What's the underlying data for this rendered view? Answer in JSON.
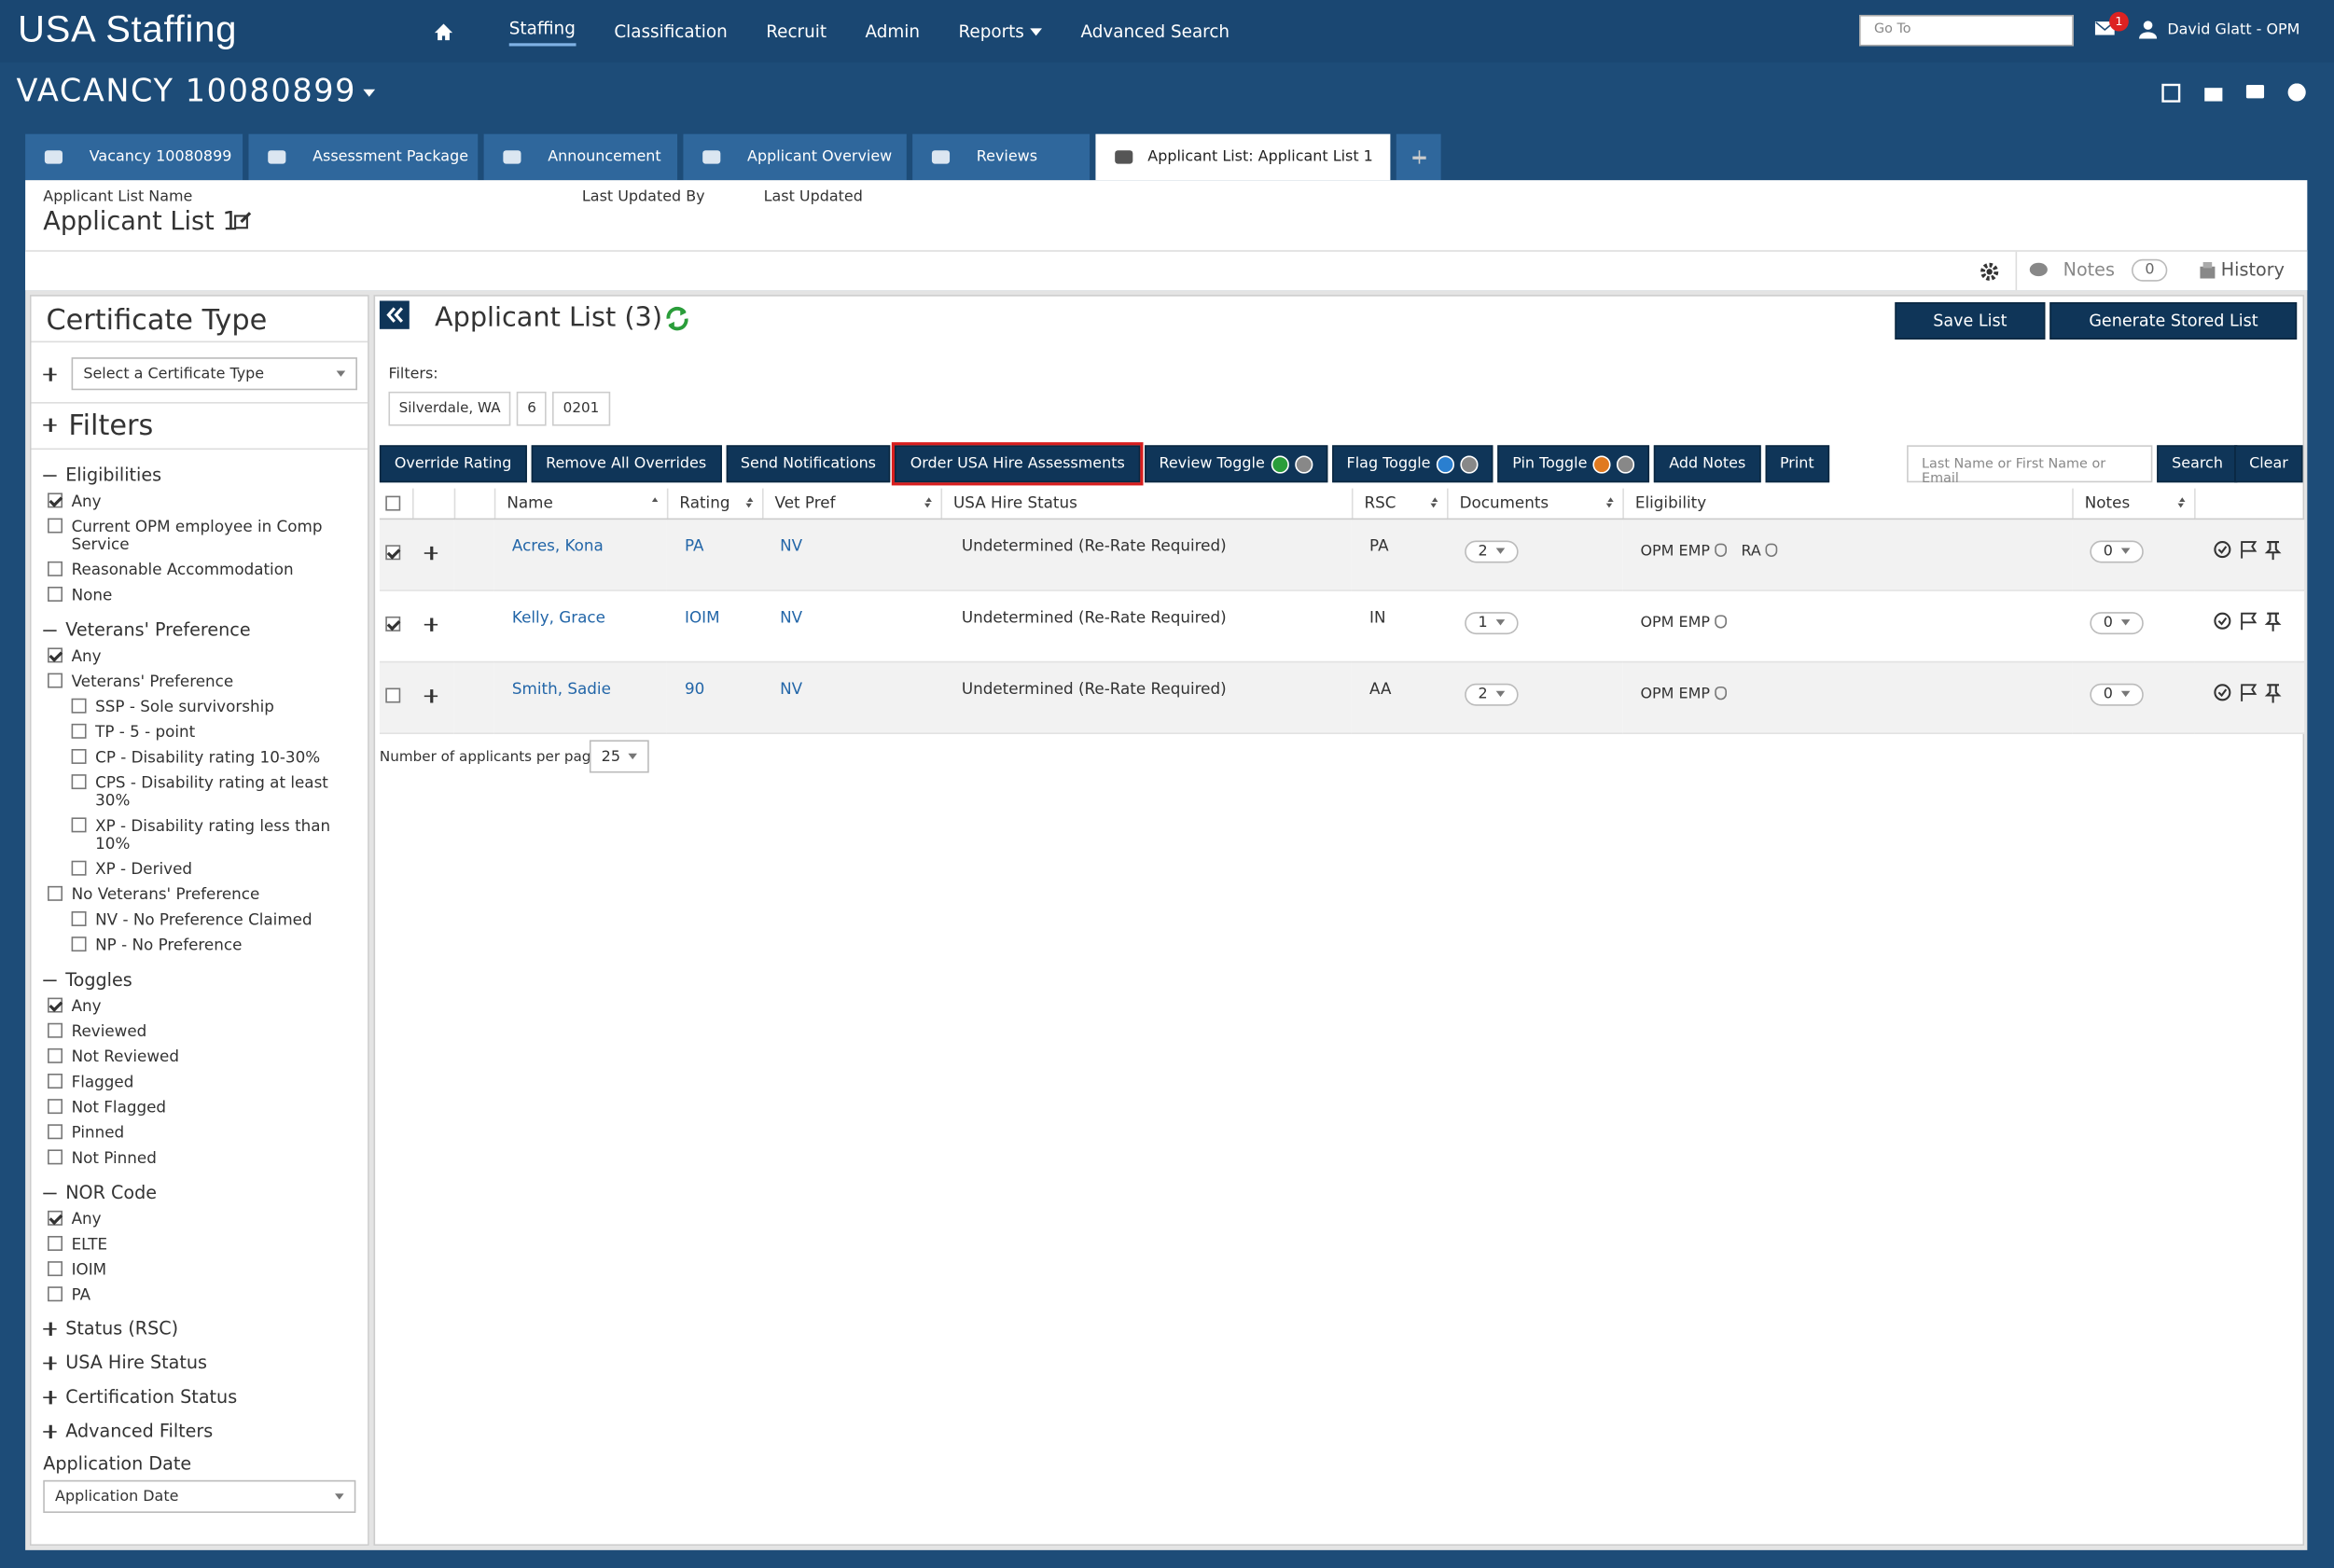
{
  "header": {
    "logo": "USA Staffing",
    "nav": [
      "Staffing",
      "Classification",
      "Recruit",
      "Admin",
      "Reports",
      "Advanced Search"
    ],
    "active_nav": "Staffing",
    "goto": "Go To",
    "badge": "1",
    "user": "David Glatt - OPM"
  },
  "vacancy": "VACANCY 10080899",
  "tabs": [
    {
      "label": "Vacancy 10080899"
    },
    {
      "label": "Assessment Package"
    },
    {
      "label": "Announcement"
    },
    {
      "label": "Applicant Overview"
    },
    {
      "label": "Reviews"
    },
    {
      "label": "Applicant List: Applicant List 1",
      "active": true
    }
  ],
  "list_info": {
    "name_label": "Applicant List Name",
    "name": "Applicant List 1",
    "updated_by_label": "Last Updated By",
    "updated_label": "Last Updated"
  },
  "toolbar": {
    "notes": "Notes",
    "notes_count": "0",
    "history": "History"
  },
  "sidebar": {
    "cert_title": "Certificate Type",
    "cert_select": "Select a Certificate Type",
    "filters_title": "Filters",
    "groups": [
      {
        "title": "Eligibilities",
        "items": [
          {
            "label": "Any",
            "checked": true
          },
          {
            "label": "Current OPM employee in Comp Service"
          },
          {
            "label": "Reasonable Accommodation"
          },
          {
            "label": "None"
          }
        ]
      },
      {
        "title": "Veterans' Preference",
        "items": [
          {
            "label": "Any",
            "checked": true
          },
          {
            "label": "Veterans' Preference",
            "children": [
              {
                "label": "SSP - Sole survivorship"
              },
              {
                "label": "TP - 5 - point"
              },
              {
                "label": "CP - Disability rating 10-30%"
              },
              {
                "label": "CPS - Disability rating at least 30%"
              },
              {
                "label": "XP - Disability rating less than 10%"
              },
              {
                "label": "XP - Derived"
              }
            ]
          },
          {
            "label": "No Veterans' Preference",
            "children": [
              {
                "label": "NV - No Preference Claimed"
              },
              {
                "label": "NP - No Preference"
              }
            ]
          }
        ]
      },
      {
        "title": "Toggles",
        "items": [
          {
            "label": "Any",
            "checked": true
          },
          {
            "label": "Reviewed"
          },
          {
            "label": "Not Reviewed"
          },
          {
            "label": "Flagged"
          },
          {
            "label": "Not Flagged"
          },
          {
            "label": "Pinned"
          },
          {
            "label": "Not Pinned"
          }
        ]
      },
      {
        "title": "NOR Code",
        "items": [
          {
            "label": "Any",
            "checked": true
          },
          {
            "label": "ELTE"
          },
          {
            "label": "IOIM"
          },
          {
            "label": "PA"
          }
        ]
      }
    ],
    "collapsed": [
      "Status (RSC)",
      "USA Hire Status",
      "Certification Status",
      "Advanced Filters"
    ],
    "date_label": "Application Date",
    "date_select": "Application Date"
  },
  "main": {
    "title": "Applicant List (3)",
    "top_buttons": [
      "Save List",
      "Generate Stored List"
    ],
    "filters_label": "Filters:",
    "filter_chips": [
      "Silverdale, WA",
      "6",
      "0201"
    ],
    "actions": [
      {
        "label": "Override Rating"
      },
      {
        "label": "Remove All Overrides"
      },
      {
        "label": "Send Notifications"
      },
      {
        "label": "Order USA Hire Assessments",
        "highlighted": true
      },
      {
        "label": "Review Toggle"
      },
      {
        "label": "Flag Toggle"
      },
      {
        "label": "Pin Toggle"
      },
      {
        "label": "Add Notes"
      },
      {
        "label": "Print"
      }
    ],
    "search_placeholder": "Last Name or First Name or Email",
    "search": "Search",
    "clear": "Clear",
    "table": {
      "columns": [
        "Name",
        "Rating",
        "Vet Pref",
        "USA Hire Status",
        "RSC",
        "Documents",
        "Eligibility",
        "Notes"
      ],
      "rows": [
        {
          "checked": true,
          "name": "Acres, Kona",
          "rating": "PA",
          "vet": "NV",
          "status": "Undetermined (Re-Rate Required)",
          "rsc": "PA",
          "docs": "2",
          "eligibility": [
            "OPM EMP",
            "RA"
          ],
          "notes": "0"
        },
        {
          "checked": true,
          "name": "Kelly, Grace",
          "rating": "IOIM",
          "vet": "NV",
          "status": "Undetermined (Re-Rate Required)",
          "rsc": "IN",
          "docs": "1",
          "eligibility": [
            "OPM EMP"
          ],
          "notes": "0"
        },
        {
          "checked": false,
          "name": "Smith, Sadie",
          "rating": "90",
          "vet": "NV",
          "status": "Undetermined (Re-Rate Required)",
          "rsc": "AA",
          "docs": "2",
          "eligibility": [
            "OPM EMP"
          ],
          "notes": "0"
        }
      ]
    },
    "per_page_label": "Number of applicants per page:",
    "per_page": "25"
  }
}
